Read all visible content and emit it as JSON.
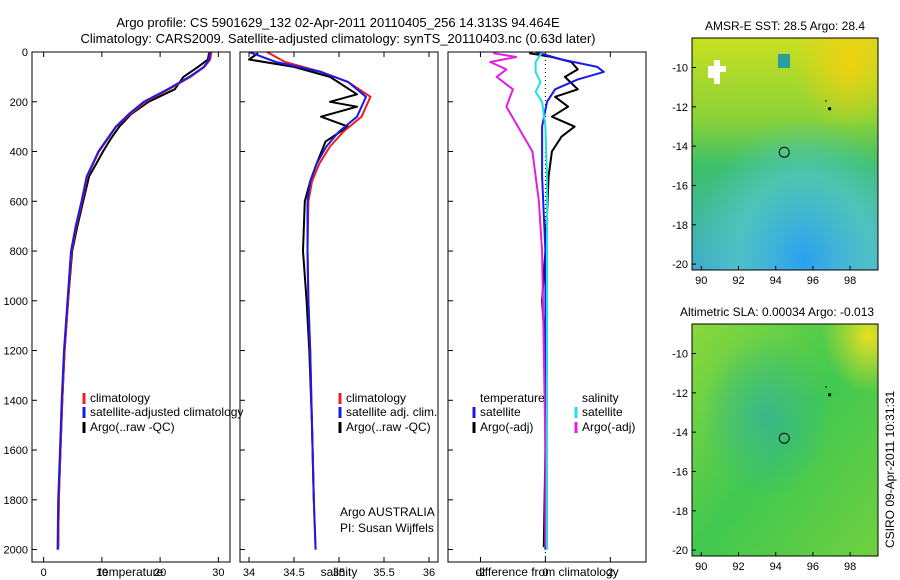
{
  "header": {
    "line1": "Argo profile: CS 5901629_132 02-Apr-2011 20110405_256 14.313S 94.464E",
    "line2": "Climatology: CARS2009. Satellite-adjusted climatology: synTS_20110403.nc (0.63d later)"
  },
  "footer": {
    "credit": "CSIRO 09-Apr-2011 10:31:31",
    "argo_org": "Argo AUSTRALIA",
    "pi": "PI: Susan Wijffels"
  },
  "colors": {
    "climatology": "#e8201e",
    "satellite": "#1a1ae6",
    "argo": "#000000",
    "sat_salinity": "#22e0e0",
    "argo_salinity": "#e020e0"
  },
  "chart_data": [
    {
      "type": "line",
      "xlabel": "temperature",
      "xlim": [
        -2,
        32
      ],
      "ylim": [
        0,
        2050
      ],
      "y_reversed": true,
      "xticks": [
        0,
        10,
        20,
        30
      ],
      "yticks": [
        0,
        200,
        400,
        600,
        800,
        1000,
        1200,
        1400,
        1600,
        1800,
        2000
      ],
      "legend": [
        "climatology",
        "satellite-adjusted climatology",
        "Argo(..raw -QC)"
      ],
      "series": [
        {
          "name": "climatology",
          "color": "#e8201e",
          "x": [
            28.8,
            28.6,
            27.6,
            25.2,
            21.5,
            17.5,
            14.8,
            12.5,
            11.0,
            9.5,
            8.5,
            7.5,
            6.6,
            5.6,
            4.8,
            4.2,
            3.6,
            3.2,
            2.9,
            2.6,
            2.5
          ],
          "y": [
            0,
            30,
            60,
            100,
            150,
            200,
            250,
            300,
            350,
            400,
            450,
            500,
            600,
            700,
            800,
            1000,
            1200,
            1400,
            1600,
            1800,
            2000
          ]
        },
        {
          "name": "satellite-adjusted climatology",
          "color": "#1a1ae6",
          "x": [
            28.5,
            28.4,
            27.5,
            25.0,
            21.3,
            17.2,
            14.6,
            12.4,
            10.9,
            9.4,
            8.4,
            7.4,
            6.5,
            5.5,
            4.7,
            4.1,
            3.5,
            3.1,
            2.8,
            2.5,
            2.4
          ],
          "y": [
            0,
            30,
            60,
            100,
            150,
            200,
            250,
            300,
            350,
            400,
            450,
            500,
            600,
            700,
            800,
            1000,
            1200,
            1400,
            1600,
            1800,
            2000
          ]
        },
        {
          "name": "Argo(..raw -QC)",
          "color": "#000000",
          "x": [
            28.4,
            28.2,
            26.5,
            24.0,
            22.5,
            18.0,
            15.0,
            13.0,
            11.5,
            10.2,
            9.0,
            7.8,
            6.8,
            5.8,
            4.9,
            4.2,
            3.6,
            3.2,
            2.9,
            2.6,
            2.5
          ],
          "y": [
            5,
            30,
            60,
            100,
            150,
            200,
            250,
            300,
            350,
            400,
            450,
            500,
            600,
            700,
            800,
            1000,
            1200,
            1400,
            1600,
            1800,
            1990
          ]
        }
      ]
    },
    {
      "type": "line",
      "xlabel": "salinity",
      "xlim": [
        33.9,
        36.1
      ],
      "ylim": [
        0,
        2050
      ],
      "y_reversed": true,
      "xticks": [
        34,
        34.5,
        35,
        35.5,
        36
      ],
      "legend": [
        "climatology",
        "satellite adj. clim.",
        "Argo(..raw -QC)"
      ],
      "series": [
        {
          "name": "climatology",
          "color": "#e8201e",
          "x": [
            34.2,
            34.4,
            34.8,
            35.1,
            35.35,
            35.25,
            35.05,
            34.9,
            34.78,
            34.7,
            34.66,
            34.65,
            34.66,
            34.68,
            34.7,
            34.72,
            34.74
          ],
          "y": [
            0,
            40,
            80,
            120,
            180,
            260,
            320,
            380,
            450,
            520,
            600,
            800,
            1000,
            1200,
            1500,
            1800,
            2000
          ]
        },
        {
          "name": "satellite adj. clim.",
          "color": "#1a1ae6",
          "x": [
            34.0,
            34.3,
            34.8,
            35.1,
            35.3,
            35.2,
            35.0,
            34.86,
            34.75,
            34.68,
            34.65,
            34.65,
            34.66,
            34.68,
            34.7,
            34.72,
            34.74
          ],
          "y": [
            0,
            40,
            80,
            120,
            180,
            260,
            320,
            380,
            450,
            520,
            600,
            800,
            1000,
            1200,
            1500,
            1800,
            2000
          ]
        },
        {
          "name": "Argo(..raw -QC)",
          "color": "#000000",
          "x": [
            34.1,
            34.0,
            34.5,
            34.9,
            35.2,
            34.9,
            35.2,
            34.8,
            35.1,
            34.85,
            34.75,
            34.68,
            34.62,
            34.6,
            34.64,
            34.67,
            34.7,
            34.72
          ],
          "y": [
            5,
            30,
            60,
            100,
            170,
            200,
            220,
            260,
            300,
            360,
            450,
            520,
            600,
            800,
            1000,
            1200,
            1500,
            1800
          ]
        }
      ]
    },
    {
      "type": "line",
      "xlabel": "difference from climatology",
      "xlim": [
        -3,
        3.1
      ],
      "ylim": [
        0,
        2050
      ],
      "y_reversed": true,
      "xticks": [
        -2,
        0,
        2
      ],
      "legend_left_title": "temperature",
      "legend_right_title": "salinity",
      "legend": [
        "satellite",
        "Argo(-adj)",
        "satellite",
        "Argo(-adj)"
      ],
      "series": [
        {
          "name": "satellite",
          "color": "#1a1ae6",
          "x": [
            -0.3,
            0.5,
            1.6,
            1.8,
            1.0,
            0.3,
            0.05,
            -0.1,
            -0.1,
            0.0,
            0.0,
            0.0,
            0.0,
            0.0
          ],
          "y": [
            0,
            30,
            60,
            80,
            110,
            150,
            200,
            300,
            500,
            800,
            1000,
            1200,
            1600,
            2000
          ]
        },
        {
          "name": "Argo(-adj)",
          "color": "#000000",
          "x": [
            -0.5,
            0.2,
            0.8,
            1.0,
            0.6,
            1.0,
            0.3,
            0.7,
            0.2,
            0.9,
            0.5,
            0.2,
            0.1,
            0.0,
            -0.1,
            0.0,
            0.0,
            -0.05
          ],
          "y": [
            5,
            20,
            40,
            70,
            100,
            150,
            180,
            220,
            260,
            300,
            340,
            400,
            500,
            800,
            1000,
            1200,
            1600,
            1990
          ]
        },
        {
          "name": "satellite",
          "color": "#22e0e0",
          "x": [
            -0.1,
            -0.3,
            -0.3,
            -0.15,
            -0.3,
            -0.1,
            0.0,
            0.05,
            0.05,
            0.05,
            0.05,
            0.05
          ],
          "y": [
            0,
            40,
            80,
            120,
            160,
            200,
            300,
            500,
            800,
            1200,
            1600,
            2000
          ]
        },
        {
          "name": "Argo(-adj)",
          "color": "#e020e0",
          "x": [
            -1.6,
            -0.9,
            -1.7,
            -1.2,
            -1.5,
            -1.0,
            -1.2,
            -0.4,
            -0.2,
            -0.1,
            -0.05,
            0.0,
            0.0
          ],
          "y": [
            5,
            20,
            40,
            70,
            100,
            150,
            220,
            400,
            600,
            800,
            1200,
            1600,
            1990
          ]
        }
      ]
    },
    {
      "type": "heatmap",
      "title": "AMSR-E SST: 28.5 Argo: 28.4",
      "xlim": [
        89.5,
        99.5
      ],
      "ylim": [
        -20.3,
        -8.5
      ],
      "xticks": [
        90,
        92,
        94,
        96,
        98
      ],
      "yticks": [
        -10,
        -12,
        -14,
        -16,
        -18,
        -20
      ],
      "marker": {
        "lon": 94.46,
        "lat": -14.31
      }
    },
    {
      "type": "heatmap",
      "title": "Altimetric SLA: 0.00034 Argo: -0.013",
      "xlim": [
        89.5,
        99.5
      ],
      "ylim": [
        -20.3,
        -8.5
      ],
      "xticks": [
        90,
        92,
        94,
        96,
        98
      ],
      "yticks": [
        -10,
        -12,
        -14,
        -16,
        -18,
        -20
      ],
      "marker": {
        "lon": 94.46,
        "lat": -14.31
      }
    }
  ]
}
